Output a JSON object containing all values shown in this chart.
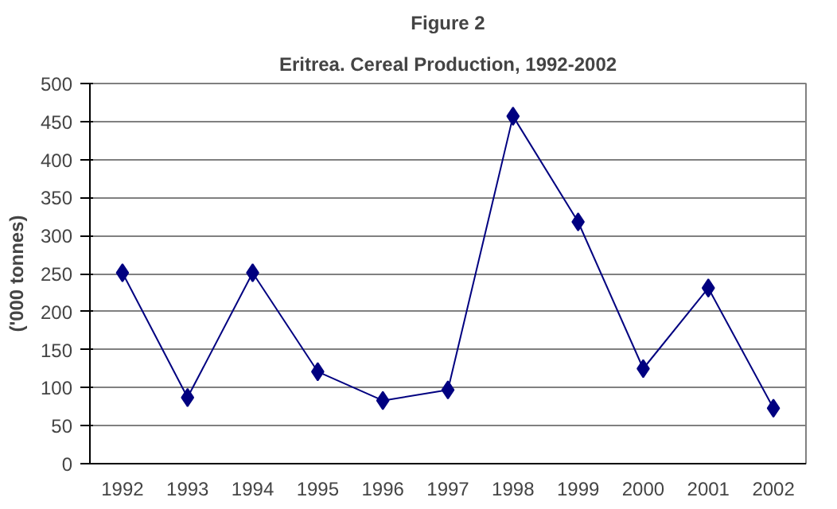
{
  "chart_data": {
    "type": "line",
    "title": "Figure 2",
    "subtitle": "Eritrea. Cereal Production, 1992-2002",
    "ylabel": "('000 tonnes)",
    "categories": [
      "1992",
      "1993",
      "1994",
      "1995",
      "1996",
      "1997",
      "1998",
      "1999",
      "2000",
      "2001",
      "2002"
    ],
    "series": [
      {
        "color": "#000080",
        "values": [
          251,
          87,
          251,
          121,
          83,
          97,
          457,
          318,
          125,
          231,
          73
        ]
      }
    ],
    "ylim": [
      0,
      500
    ],
    "yticks": [
      0,
      50,
      100,
      150,
      200,
      250,
      300,
      350,
      400,
      450,
      500
    ],
    "grid": "y",
    "marker": "diamond",
    "line_style": "solid"
  }
}
